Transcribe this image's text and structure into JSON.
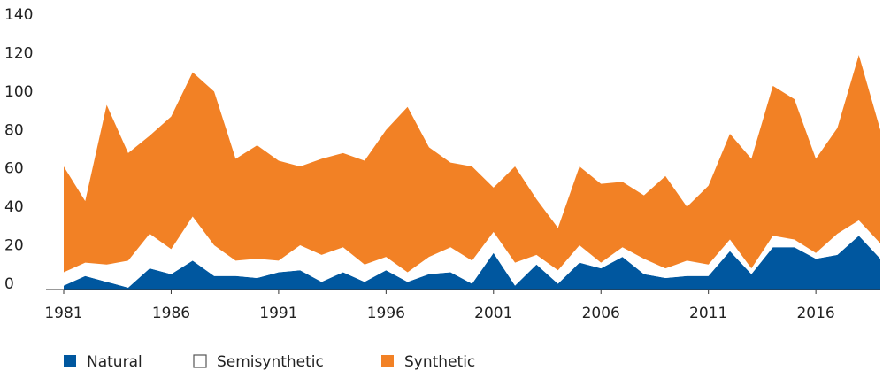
{
  "chart_data": {
    "type": "stacked_area",
    "x": [
      1981,
      1982,
      1983,
      1984,
      1985,
      1986,
      1987,
      1988,
      1989,
      1990,
      1991,
      1992,
      1993,
      1994,
      1995,
      1996,
      1997,
      1998,
      1999,
      2000,
      2001,
      2002,
      2003,
      2004,
      2005,
      2006,
      2007,
      2008,
      2009,
      2010,
      2011,
      2012,
      2013,
      2014,
      2015,
      2016,
      2017,
      2018,
      2019
    ],
    "series": [
      {
        "name": "Natural",
        "color": "#00579f",
        "values": [
          2,
          7,
          4,
          1,
          11,
          8,
          15,
          7,
          7,
          6,
          9,
          10,
          4,
          9,
          4,
          10,
          4,
          8,
          9,
          3,
          19,
          2,
          13,
          3,
          14,
          11,
          17,
          8,
          6,
          7,
          7,
          20,
          8,
          22,
          22,
          16,
          18,
          28,
          16
        ]
      },
      {
        "name": "Semisynthetic",
        "color": "#ffffff",
        "values": [
          7,
          7,
          9,
          14,
          18,
          13,
          23,
          16,
          8,
          10,
          6,
          13,
          14,
          13,
          9,
          7,
          5,
          9,
          13,
          12,
          11,
          12,
          5,
          7,
          9,
          3,
          5,
          8,
          5,
          8,
          6,
          6,
          3,
          6,
          4,
          3,
          11,
          8,
          8
        ]
      },
      {
        "name": "Synthetic",
        "color": "#f28125",
        "values": [
          55,
          32,
          83,
          56,
          51,
          69,
          75,
          80,
          53,
          59,
          52,
          41,
          50,
          49,
          54,
          66,
          86,
          57,
          44,
          49,
          23,
          50,
          29,
          22,
          41,
          41,
          34,
          33,
          48,
          28,
          41,
          55,
          57,
          78,
          73,
          49,
          55,
          86,
          59
        ]
      }
    ],
    "xlim": [
      1981,
      2019
    ],
    "xticks": [
      1981,
      1986,
      1991,
      1996,
      2001,
      2006,
      2011,
      2016
    ],
    "ylim": [
      0,
      140
    ],
    "yticks": [
      0,
      20,
      40,
      60,
      80,
      100,
      120,
      140
    ]
  }
}
